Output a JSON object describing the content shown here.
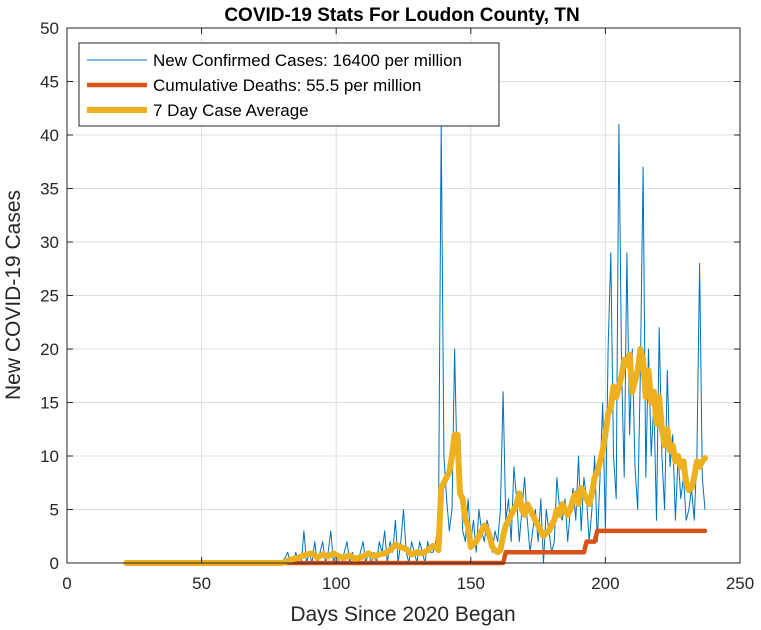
{
  "chart_data": {
    "type": "line",
    "title": "COVID-19 Stats For Loudon County, TN",
    "xlabel": "Days Since 2020 Began",
    "ylabel": "New COVID-19 Cases",
    "xlim": [
      0,
      250
    ],
    "ylim": [
      0,
      50
    ],
    "xticks": [
      0,
      50,
      100,
      150,
      200,
      250
    ],
    "yticks": [
      0,
      5,
      10,
      15,
      20,
      25,
      30,
      35,
      40,
      45,
      50
    ],
    "grid": true,
    "legend_position": "top-left",
    "series": [
      {
        "name": "New Confirmed Cases: 16400 per million",
        "color": "#0072BD",
        "line_width": "thin",
        "points": [
          [
            22,
            0
          ],
          [
            80,
            0
          ],
          [
            82,
            1
          ],
          [
            83,
            0
          ],
          [
            84,
            0
          ],
          [
            85,
            1
          ],
          [
            86,
            0
          ],
          [
            87,
            0
          ],
          [
            88,
            3
          ],
          [
            89,
            0
          ],
          [
            90,
            1
          ],
          [
            91,
            0
          ],
          [
            92,
            2
          ],
          [
            93,
            0
          ],
          [
            94,
            1
          ],
          [
            95,
            2
          ],
          [
            96,
            0
          ],
          [
            97,
            1
          ],
          [
            98,
            3
          ],
          [
            99,
            0
          ],
          [
            100,
            1
          ],
          [
            101,
            0
          ],
          [
            102,
            0
          ],
          [
            103,
            1
          ],
          [
            104,
            2
          ],
          [
            105,
            0
          ],
          [
            106,
            1
          ],
          [
            107,
            0
          ],
          [
            108,
            0
          ],
          [
            109,
            1
          ],
          [
            110,
            2
          ],
          [
            111,
            0
          ],
          [
            112,
            1
          ],
          [
            113,
            0
          ],
          [
            114,
            1
          ],
          [
            115,
            0
          ],
          [
            116,
            2
          ],
          [
            117,
            1
          ],
          [
            118,
            3
          ],
          [
            119,
            0
          ],
          [
            120,
            2
          ],
          [
            121,
            1
          ],
          [
            122,
            4
          ],
          [
            123,
            0
          ],
          [
            124,
            2
          ],
          [
            125,
            5
          ],
          [
            126,
            1
          ],
          [
            127,
            0
          ],
          [
            128,
            2
          ],
          [
            129,
            1
          ],
          [
            130,
            0
          ],
          [
            131,
            2
          ],
          [
            132,
            1
          ],
          [
            133,
            0
          ],
          [
            134,
            2
          ],
          [
            135,
            1
          ],
          [
            136,
            1
          ],
          [
            137,
            2
          ],
          [
            138,
            4
          ],
          [
            139,
            41
          ],
          [
            140,
            10
          ],
          [
            141,
            6
          ],
          [
            142,
            3
          ],
          [
            143,
            5
          ],
          [
            144,
            20
          ],
          [
            145,
            8
          ],
          [
            146,
            12
          ],
          [
            147,
            3
          ],
          [
            148,
            2
          ],
          [
            149,
            6
          ],
          [
            150,
            2
          ],
          [
            151,
            4
          ],
          [
            152,
            1
          ],
          [
            153,
            5
          ],
          [
            154,
            3
          ],
          [
            155,
            2
          ],
          [
            156,
            4
          ],
          [
            157,
            3
          ],
          [
            158,
            1
          ],
          [
            159,
            3
          ],
          [
            160,
            2
          ],
          [
            161,
            5
          ],
          [
            162,
            16
          ],
          [
            163,
            4
          ],
          [
            164,
            6
          ],
          [
            165,
            2
          ],
          [
            166,
            9
          ],
          [
            167,
            6
          ],
          [
            168,
            2
          ],
          [
            169,
            5
          ],
          [
            170,
            8
          ],
          [
            171,
            4
          ],
          [
            172,
            1
          ],
          [
            173,
            3
          ],
          [
            174,
            5
          ],
          [
            175,
            2
          ],
          [
            176,
            6
          ],
          [
            177,
            0
          ],
          [
            178,
            5
          ],
          [
            179,
            3
          ],
          [
            180,
            1
          ],
          [
            181,
            2
          ],
          [
            182,
            8
          ],
          [
            183,
            5
          ],
          [
            184,
            4
          ],
          [
            185,
            6
          ],
          [
            186,
            2
          ],
          [
            187,
            5
          ],
          [
            188,
            7
          ],
          [
            189,
            4
          ],
          [
            190,
            10
          ],
          [
            191,
            3
          ],
          [
            192,
            8
          ],
          [
            193,
            6
          ],
          [
            194,
            2
          ],
          [
            195,
            5
          ],
          [
            196,
            10
          ],
          [
            197,
            2
          ],
          [
            198,
            8
          ],
          [
            199,
            15
          ],
          [
            200,
            3
          ],
          [
            201,
            20
          ],
          [
            202,
            29
          ],
          [
            203,
            10
          ],
          [
            204,
            6
          ],
          [
            205,
            41
          ],
          [
            206,
            18
          ],
          [
            207,
            8
          ],
          [
            208,
            29
          ],
          [
            209,
            12
          ],
          [
            210,
            20
          ],
          [
            211,
            9
          ],
          [
            212,
            5
          ],
          [
            213,
            18
          ],
          [
            214,
            37
          ],
          [
            215,
            8
          ],
          [
            216,
            20
          ],
          [
            217,
            10
          ],
          [
            218,
            15
          ],
          [
            219,
            4
          ],
          [
            220,
            22
          ],
          [
            221,
            10
          ],
          [
            222,
            5
          ],
          [
            223,
            18
          ],
          [
            224,
            9
          ],
          [
            225,
            12
          ],
          [
            226,
            4
          ],
          [
            227,
            10
          ],
          [
            228,
            6
          ],
          [
            229,
            8
          ],
          [
            230,
            4
          ],
          [
            231,
            5
          ],
          [
            232,
            7
          ],
          [
            233,
            4
          ],
          [
            234,
            10
          ],
          [
            235,
            28
          ],
          [
            236,
            8
          ],
          [
            237,
            5
          ]
        ]
      },
      {
        "name": "Cumulative Deaths: 55.5 per million",
        "color": "#D95319",
        "line_width": "thick",
        "points": [
          [
            22,
            0
          ],
          [
            162,
            0
          ],
          [
            163,
            1
          ],
          [
            192,
            1
          ],
          [
            193,
            2
          ],
          [
            196,
            2
          ],
          [
            197,
            3
          ],
          [
            237,
            3
          ]
        ]
      },
      {
        "name": "7 Day Case Average",
        "color": "#EDB120",
        "line_width": "thickest",
        "points": [
          [
            22,
            0
          ],
          [
            80,
            0
          ],
          [
            83,
            0.3
          ],
          [
            86,
            0.5
          ],
          [
            89,
            0.8
          ],
          [
            91,
            0.9
          ],
          [
            93,
            0.5
          ],
          [
            95,
            0.8
          ],
          [
            97,
            0.6
          ],
          [
            99,
            0.9
          ],
          [
            101,
            0.6
          ],
          [
            103,
            0.5
          ],
          [
            105,
            0.7
          ],
          [
            107,
            0.4
          ],
          [
            110,
            0.6
          ],
          [
            112,
            0.9
          ],
          [
            114,
            0.6
          ],
          [
            116,
            0.8
          ],
          [
            118,
            0.9
          ],
          [
            120,
            1.2
          ],
          [
            122,
            1.7
          ],
          [
            124,
            1.5
          ],
          [
            126,
            1.3
          ],
          [
            128,
            0.8
          ],
          [
            130,
            1.0
          ],
          [
            132,
            0.9
          ],
          [
            134,
            1.2
          ],
          [
            136,
            1.6
          ],
          [
            137,
            1.5
          ],
          [
            138,
            1.2
          ],
          [
            139,
            7.0
          ],
          [
            140,
            7.5
          ],
          [
            141,
            8.0
          ],
          [
            142,
            8.5
          ],
          [
            143,
            10.0
          ],
          [
            144,
            12.0
          ],
          [
            145,
            12.0
          ],
          [
            146,
            6.5
          ],
          [
            147,
            6.0
          ],
          [
            148,
            4.0
          ],
          [
            149,
            3.5
          ],
          [
            150,
            1.5
          ],
          [
            151,
            1.8
          ],
          [
            152,
            2.0
          ],
          [
            153,
            2.5
          ],
          [
            154,
            3.0
          ],
          [
            155,
            3.5
          ],
          [
            156,
            3.2
          ],
          [
            157,
            2.5
          ],
          [
            158,
            1.5
          ],
          [
            159,
            1.2
          ],
          [
            160,
            1.0
          ],
          [
            161,
            1.2
          ],
          [
            162,
            2.5
          ],
          [
            163,
            3.5
          ],
          [
            164,
            4.0
          ],
          [
            165,
            4.5
          ],
          [
            166,
            5.0
          ],
          [
            167,
            5.5
          ],
          [
            168,
            6.5
          ],
          [
            169,
            5.0
          ],
          [
            170,
            4.5
          ],
          [
            171,
            5.5
          ],
          [
            172,
            5.0
          ],
          [
            173,
            4.5
          ],
          [
            174,
            4.0
          ],
          [
            175,
            3.5
          ],
          [
            176,
            3.0
          ],
          [
            177,
            2.5
          ],
          [
            178,
            2.8
          ],
          [
            179,
            3.0
          ],
          [
            180,
            3.5
          ],
          [
            181,
            4.0
          ],
          [
            182,
            5.0
          ],
          [
            183,
            4.5
          ],
          [
            184,
            5.5
          ],
          [
            185,
            5.0
          ],
          [
            186,
            4.5
          ],
          [
            187,
            5.0
          ],
          [
            188,
            6.0
          ],
          [
            189,
            6.5
          ],
          [
            190,
            5.5
          ],
          [
            191,
            7.0
          ],
          [
            192,
            6.5
          ],
          [
            193,
            6.0
          ],
          [
            194,
            5.5
          ],
          [
            195,
            6.5
          ],
          [
            196,
            8.0
          ],
          [
            197,
            8.5
          ],
          [
            198,
            9.5
          ],
          [
            199,
            10.5
          ],
          [
            200,
            12.0
          ],
          [
            201,
            14.0
          ],
          [
            202,
            14.5
          ],
          [
            203,
            16.5
          ],
          [
            204,
            15.5
          ],
          [
            205,
            16.5
          ],
          [
            206,
            17.5
          ],
          [
            207,
            19.0
          ],
          [
            208,
            18.5
          ],
          [
            209,
            19.5
          ],
          [
            210,
            16.0
          ],
          [
            211,
            17.0
          ],
          [
            212,
            18.0
          ],
          [
            213,
            20.0
          ],
          [
            214,
            19.0
          ],
          [
            215,
            15.5
          ],
          [
            216,
            18.0
          ],
          [
            217,
            15.0
          ],
          [
            218,
            16.0
          ],
          [
            219,
            13.0
          ],
          [
            220,
            15.5
          ],
          [
            221,
            12.5
          ],
          [
            222,
            11.0
          ],
          [
            223,
            12.5
          ],
          [
            224,
            10.5
          ],
          [
            225,
            11.0
          ],
          [
            226,
            9.5
          ],
          [
            227,
            10.0
          ],
          [
            228,
            9.0
          ],
          [
            229,
            9.5
          ],
          [
            230,
            7.5
          ],
          [
            231,
            6.8
          ],
          [
            232,
            7.0
          ],
          [
            233,
            8.0
          ],
          [
            234,
            9.5
          ],
          [
            235,
            9.0
          ],
          [
            236,
            9.5
          ],
          [
            237,
            9.8
          ]
        ]
      }
    ]
  }
}
